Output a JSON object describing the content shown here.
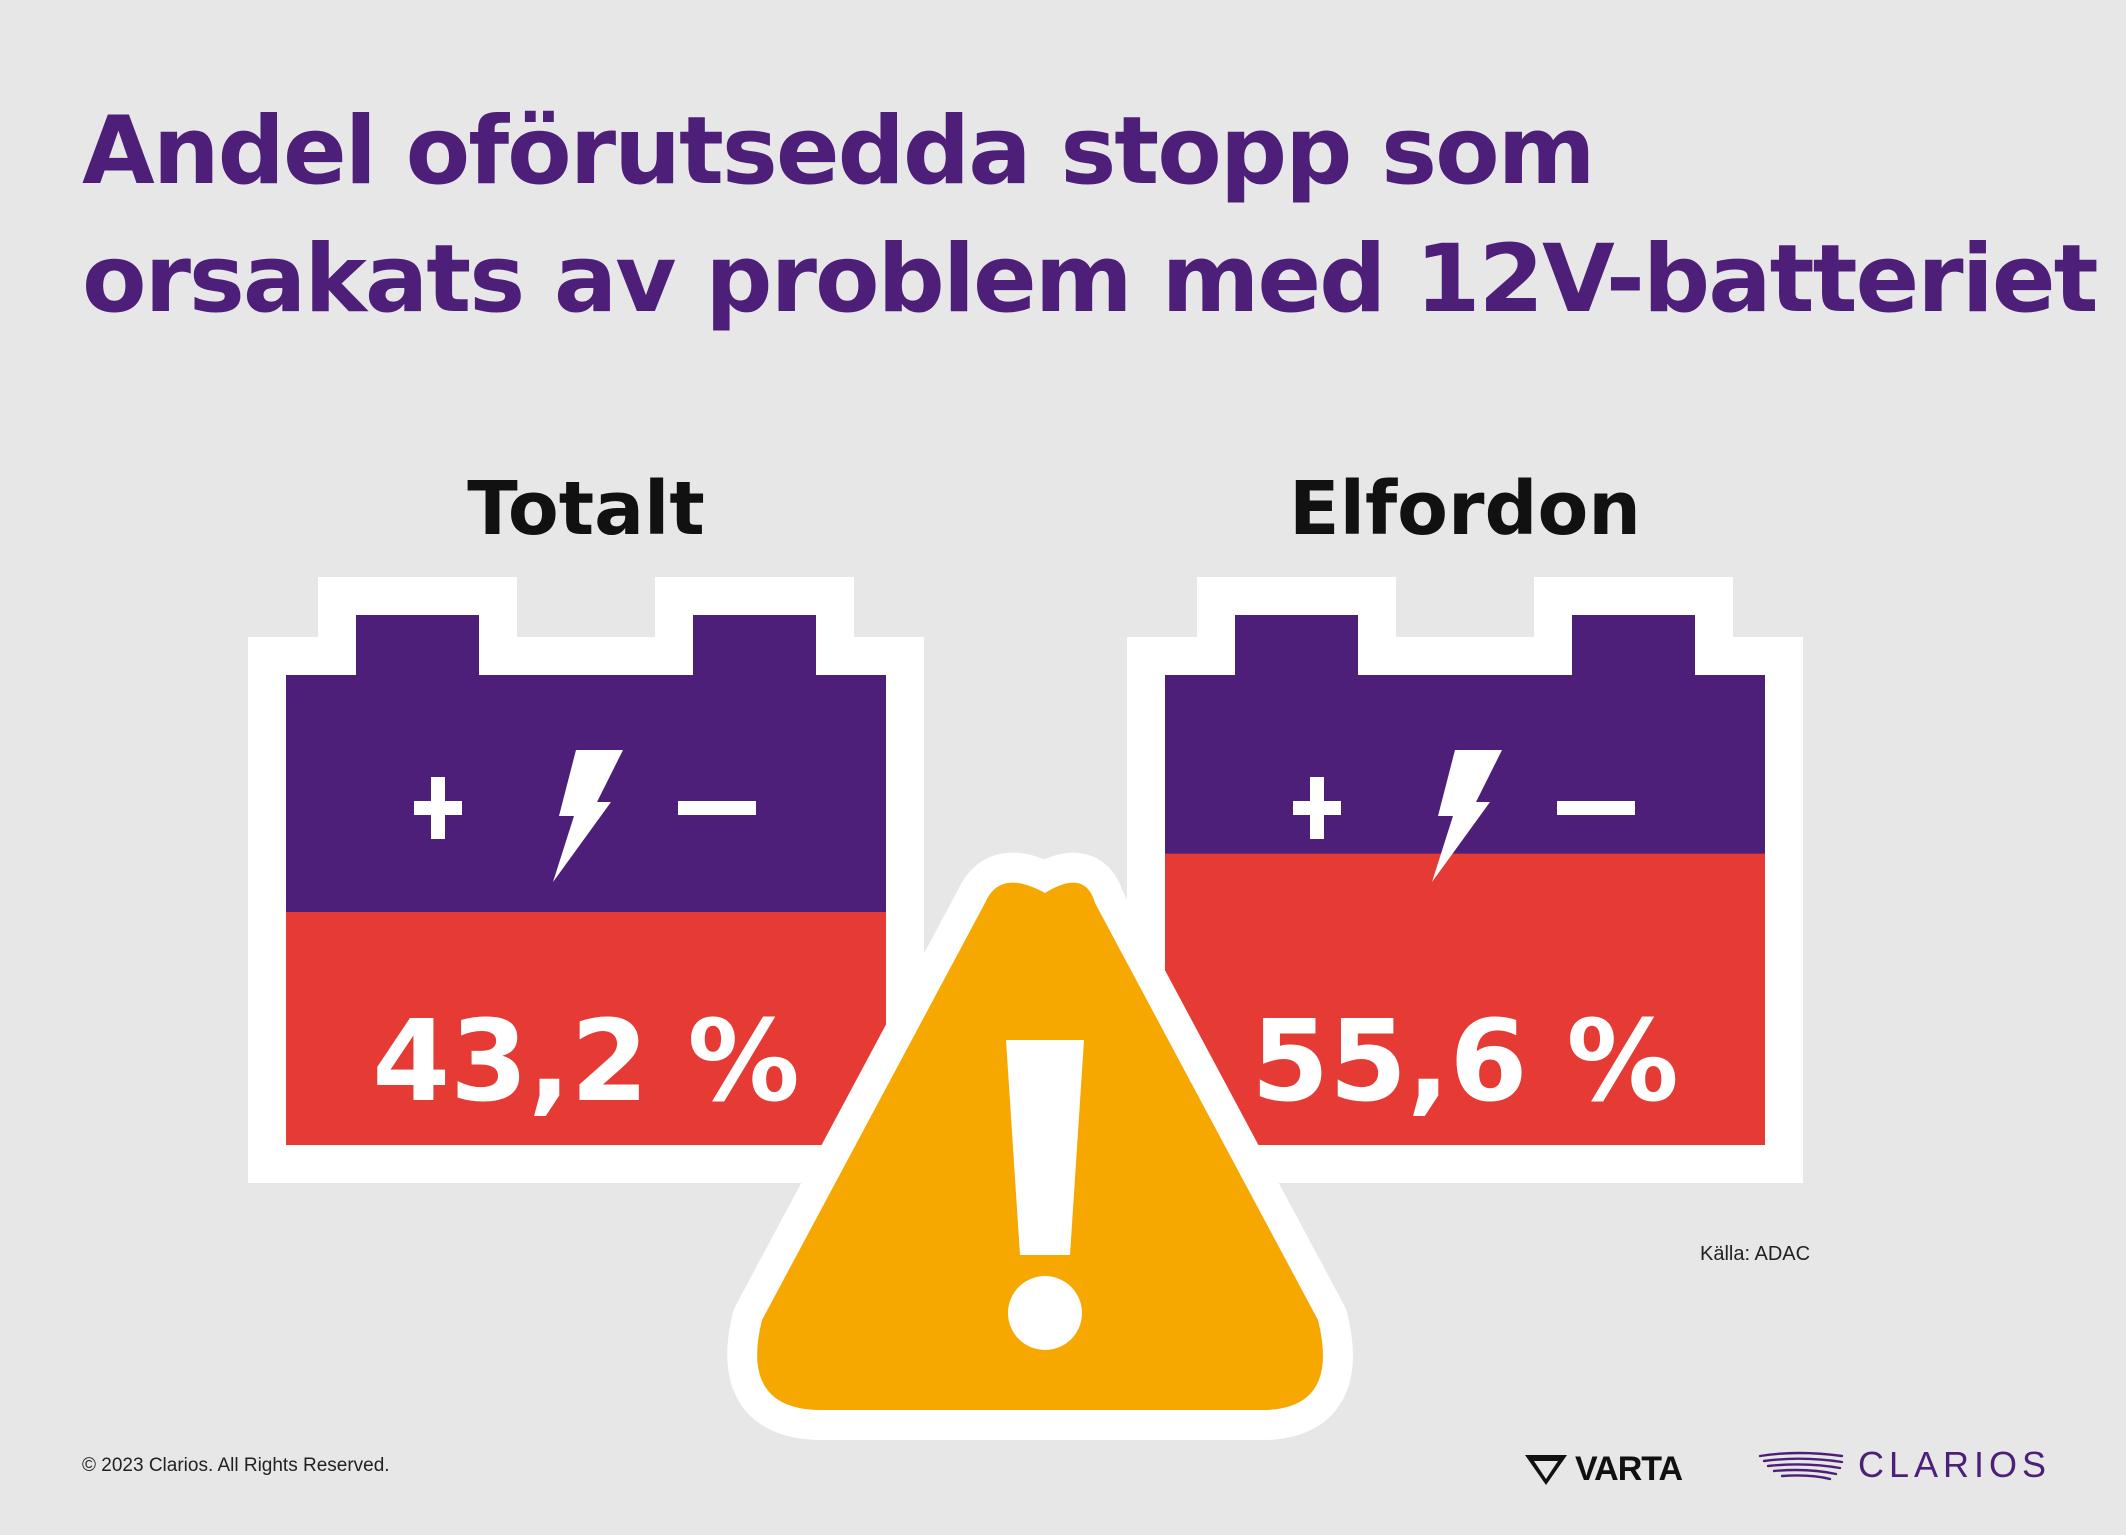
{
  "title_lines": [
    "Andel oförutsedda stopp som",
    "orsakats av problem med 12V-batteriet"
  ],
  "chart_data": {
    "type": "bar",
    "title": "Andel oförutsedda stopp som orsakats av problem med 12V-batteriet",
    "categories": [
      "Totalt",
      "Elfordon"
    ],
    "values": [
      43.2,
      55.6
    ],
    "value_labels": [
      "43,2 %",
      "55,6 %"
    ],
    "unit": "%",
    "ylim": [
      0,
      100
    ]
  },
  "source": "Källa: ADAC",
  "copyright": "© 2023 Clarios. All Rights Reserved.",
  "logos": {
    "varta": "VARTA",
    "clarios": "CLARIOS"
  },
  "icons": {
    "battery_symbols": [
      "plus-icon",
      "lightning-bolt-icon",
      "minus-icon"
    ],
    "warning": "warning-triangle-icon"
  },
  "colors": {
    "title": "#4e1f78",
    "battery_body": "#4e1f78",
    "battery_fill": "#e63a35",
    "battery_outline": "#ffffff",
    "warning": "#f6a800",
    "background": "#e6e7e6"
  }
}
